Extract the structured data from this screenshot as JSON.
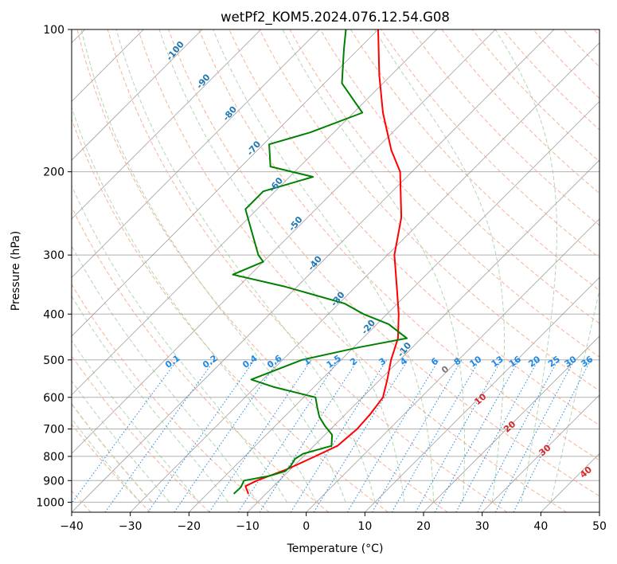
{
  "chart_data": {
    "type": "line",
    "title": "wetPf2_KOM5.2024.076.12.54.G08",
    "xlabel": "Temperature (°C)",
    "ylabel": "Pressure (hPa)",
    "xlim": [
      -40,
      50
    ],
    "ylim": [
      1050,
      100
    ],
    "y_scale": "log",
    "x_ticks": [
      "−40",
      "−30",
      "−20",
      "−10",
      "0",
      "10",
      "20",
      "30",
      "40",
      "50"
    ],
    "y_ticks": [
      "100",
      "200",
      "300",
      "400",
      "500",
      "600",
      "700",
      "800",
      "900",
      "1000"
    ],
    "grid": true,
    "legend": "none",
    "series": [
      {
        "color": "#ff0000",
        "points": [
          {
            "p": 960,
            "t": -13
          },
          {
            "p": 925,
            "t": -14.8
          },
          {
            "p": 900,
            "t": -13.8
          },
          {
            "p": 850,
            "t": -10.5
          },
          {
            "p": 800,
            "t": -8
          },
          {
            "p": 760,
            "t": -6
          },
          {
            "p": 700,
            "t": -5.5
          },
          {
            "p": 650,
            "t": -5.8
          },
          {
            "p": 600,
            "t": -6.5
          },
          {
            "p": 550,
            "t": -8.8
          },
          {
            "p": 500,
            "t": -11.5
          },
          {
            "p": 450,
            "t": -14
          },
          {
            "p": 400,
            "t": -18
          },
          {
            "p": 350,
            "t": -23
          },
          {
            "p": 300,
            "t": -28.8
          },
          {
            "p": 250,
            "t": -34
          },
          {
            "p": 200,
            "t": -42
          },
          {
            "p": 180,
            "t": -47.2
          },
          {
            "p": 150,
            "t": -55
          },
          {
            "p": 125,
            "t": -62
          },
          {
            "p": 100,
            "t": -70
          }
        ]
      },
      {
        "color": "#008000",
        "points": [
          {
            "p": 960,
            "t": -15.5
          },
          {
            "p": 930,
            "t": -15.4
          },
          {
            "p": 900,
            "t": -16
          },
          {
            "p": 880,
            "t": -12.5
          },
          {
            "p": 860,
            "t": -10.6
          },
          {
            "p": 840,
            "t": -10.5
          },
          {
            "p": 810,
            "t": -11
          },
          {
            "p": 790,
            "t": -10.5
          },
          {
            "p": 760,
            "t": -7
          },
          {
            "p": 720,
            "t": -8.8
          },
          {
            "p": 690,
            "t": -11.5
          },
          {
            "p": 660,
            "t": -14
          },
          {
            "p": 630,
            "t": -16
          },
          {
            "p": 600,
            "t": -18
          },
          {
            "p": 570,
            "t": -27
          },
          {
            "p": 550,
            "t": -32
          },
          {
            "p": 500,
            "t": -26.7
          },
          {
            "p": 470,
            "t": -19
          },
          {
            "p": 450,
            "t": -12.5
          },
          {
            "p": 420,
            "t": -18
          },
          {
            "p": 400,
            "t": -24
          },
          {
            "p": 380,
            "t": -29
          },
          {
            "p": 350,
            "t": -42
          },
          {
            "p": 330,
            "t": -53
          },
          {
            "p": 310,
            "t": -50
          },
          {
            "p": 300,
            "t": -52
          },
          {
            "p": 240,
            "t": -62
          },
          {
            "p": 220,
            "t": -62
          },
          {
            "p": 205,
            "t": -56
          },
          {
            "p": 195,
            "t": -65
          },
          {
            "p": 175,
            "t": -69
          },
          {
            "p": 165,
            "t": -64
          },
          {
            "p": 150,
            "t": -58.5
          },
          {
            "p": 130,
            "t": -67
          },
          {
            "p": 110,
            "t": -72.5
          },
          {
            "p": 100,
            "t": -75.5
          }
        ]
      }
    ],
    "dry_adiabat_labels": [
      "10",
      "20",
      "30",
      "40"
    ],
    "moist_adiabat_label": "0",
    "mixing_ratio_labels": [
      "0.1",
      "0.2",
      "0.4",
      "0.6",
      "1",
      "1.5",
      "2",
      "3",
      "4",
      "6",
      "8",
      "10",
      "13",
      "16",
      "20",
      "25",
      "30",
      "36"
    ],
    "saturation_iso_labels": [
      "-100",
      "-90",
      "-80",
      "-70",
      "-60",
      "-50",
      "-40",
      "-30",
      "-20",
      "-10"
    ],
    "colors": {
      "temperature": "#ff0000",
      "dewpoint": "#008000",
      "dry_adiabat": "#f4a582",
      "moist_adiabat": "#92c592",
      "mixing_ratio": "#1e88e5",
      "isotherm": "#808080",
      "dry_label": "#d62728",
      "iso_label": "#1f77b4"
    }
  }
}
